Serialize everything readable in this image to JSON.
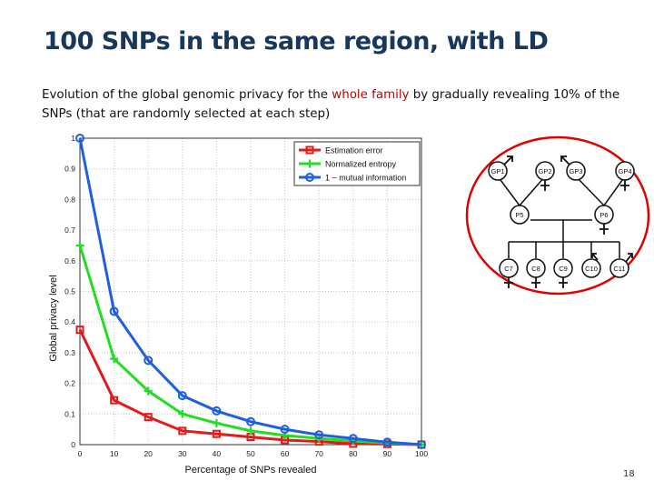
{
  "slide": {
    "title": "100 SNPs in the same region, with LD",
    "subtitle_pre": "Evolution of the global genomic privacy for the ",
    "subtitle_highlight": "whole family",
    "subtitle_post": " by gradually revealing 10% of the SNPs (that are randomly selected at each step)",
    "page_number": "18"
  },
  "colors": {
    "title": "#17375e",
    "highlight": "#c00000"
  },
  "chart_data": {
    "type": "line",
    "x": [
      0,
      10,
      20,
      30,
      40,
      50,
      60,
      70,
      80,
      90,
      100
    ],
    "series": [
      {
        "name": "Estimation error",
        "color": "#e41a1a",
        "marker": "square",
        "values": [
          0.375,
          0.145,
          0.09,
          0.045,
          0.035,
          0.025,
          0.015,
          0.01,
          0.003,
          0.002,
          0.0
        ]
      },
      {
        "name": "Normalized entropy",
        "color": "#22dd22",
        "marker": "plus",
        "values": [
          0.65,
          0.28,
          0.175,
          0.1,
          0.07,
          0.045,
          0.03,
          0.02,
          0.012,
          0.005,
          0.0
        ]
      },
      {
        "name": "1 − mutual information",
        "color": "#1c5fe0",
        "marker": "circle",
        "values": [
          1.0,
          0.435,
          0.275,
          0.16,
          0.11,
          0.075,
          0.05,
          0.032,
          0.02,
          0.008,
          0.0
        ]
      }
    ],
    "xlabel": "Percentage of SNPs revealed",
    "ylabel": "Global privacy level",
    "xlim": [
      0,
      100
    ],
    "ylim": [
      0,
      1
    ],
    "xticks": [
      "0",
      "10",
      "20",
      "30",
      "40",
      "50",
      "60",
      "70",
      "80",
      "90",
      "100"
    ],
    "yticks": [
      "0",
      "0.1",
      "0.2",
      "0.3",
      "0.4",
      "0.5",
      "0.6",
      "0.7",
      "0.8",
      "0.9",
      "1"
    ],
    "grid": true,
    "legend_position": "top-right"
  },
  "pedigree": {
    "grandparents": [
      "GP1",
      "GP2",
      "GP3",
      "GP4"
    ],
    "parents": [
      "P5",
      "P6"
    ],
    "children": [
      "C7",
      "C8",
      "C9",
      "C10",
      "C11"
    ]
  }
}
